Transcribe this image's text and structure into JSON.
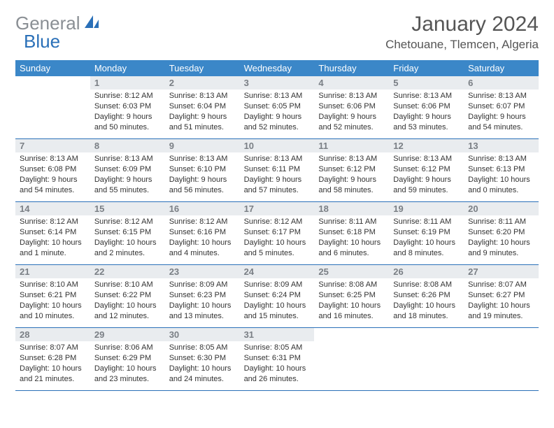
{
  "logo": {
    "gray": "General",
    "blue": "Blue"
  },
  "title": "January 2024",
  "location": "Chetouane, Tlemcen, Algeria",
  "colors": {
    "header_bg": "#3b87c8",
    "header_text": "#ffffff",
    "number_bg": "#e9ecef",
    "number_text": "#7a7f85",
    "border": "#2a70b8",
    "logo_gray": "#8a8f94",
    "logo_blue": "#2a70b8"
  },
  "day_names": [
    "Sunday",
    "Monday",
    "Tuesday",
    "Wednesday",
    "Thursday",
    "Friday",
    "Saturday"
  ],
  "weeks": [
    {
      "numbers": [
        "",
        "1",
        "2",
        "3",
        "4",
        "5",
        "6"
      ],
      "cells": [
        {
          "sunrise": "",
          "sunset": "",
          "daylight": ""
        },
        {
          "sunrise": "Sunrise: 8:12 AM",
          "sunset": "Sunset: 6:03 PM",
          "daylight": "Daylight: 9 hours and 50 minutes."
        },
        {
          "sunrise": "Sunrise: 8:13 AM",
          "sunset": "Sunset: 6:04 PM",
          "daylight": "Daylight: 9 hours and 51 minutes."
        },
        {
          "sunrise": "Sunrise: 8:13 AM",
          "sunset": "Sunset: 6:05 PM",
          "daylight": "Daylight: 9 hours and 52 minutes."
        },
        {
          "sunrise": "Sunrise: 8:13 AM",
          "sunset": "Sunset: 6:06 PM",
          "daylight": "Daylight: 9 hours and 52 minutes."
        },
        {
          "sunrise": "Sunrise: 8:13 AM",
          "sunset": "Sunset: 6:06 PM",
          "daylight": "Daylight: 9 hours and 53 minutes."
        },
        {
          "sunrise": "Sunrise: 8:13 AM",
          "sunset": "Sunset: 6:07 PM",
          "daylight": "Daylight: 9 hours and 54 minutes."
        }
      ]
    },
    {
      "numbers": [
        "7",
        "8",
        "9",
        "10",
        "11",
        "12",
        "13"
      ],
      "cells": [
        {
          "sunrise": "Sunrise: 8:13 AM",
          "sunset": "Sunset: 6:08 PM",
          "daylight": "Daylight: 9 hours and 54 minutes."
        },
        {
          "sunrise": "Sunrise: 8:13 AM",
          "sunset": "Sunset: 6:09 PM",
          "daylight": "Daylight: 9 hours and 55 minutes."
        },
        {
          "sunrise": "Sunrise: 8:13 AM",
          "sunset": "Sunset: 6:10 PM",
          "daylight": "Daylight: 9 hours and 56 minutes."
        },
        {
          "sunrise": "Sunrise: 8:13 AM",
          "sunset": "Sunset: 6:11 PM",
          "daylight": "Daylight: 9 hours and 57 minutes."
        },
        {
          "sunrise": "Sunrise: 8:13 AM",
          "sunset": "Sunset: 6:12 PM",
          "daylight": "Daylight: 9 hours and 58 minutes."
        },
        {
          "sunrise": "Sunrise: 8:13 AM",
          "sunset": "Sunset: 6:12 PM",
          "daylight": "Daylight: 9 hours and 59 minutes."
        },
        {
          "sunrise": "Sunrise: 8:13 AM",
          "sunset": "Sunset: 6:13 PM",
          "daylight": "Daylight: 10 hours and 0 minutes."
        }
      ]
    },
    {
      "numbers": [
        "14",
        "15",
        "16",
        "17",
        "18",
        "19",
        "20"
      ],
      "cells": [
        {
          "sunrise": "Sunrise: 8:12 AM",
          "sunset": "Sunset: 6:14 PM",
          "daylight": "Daylight: 10 hours and 1 minute."
        },
        {
          "sunrise": "Sunrise: 8:12 AM",
          "sunset": "Sunset: 6:15 PM",
          "daylight": "Daylight: 10 hours and 2 minutes."
        },
        {
          "sunrise": "Sunrise: 8:12 AM",
          "sunset": "Sunset: 6:16 PM",
          "daylight": "Daylight: 10 hours and 4 minutes."
        },
        {
          "sunrise": "Sunrise: 8:12 AM",
          "sunset": "Sunset: 6:17 PM",
          "daylight": "Daylight: 10 hours and 5 minutes."
        },
        {
          "sunrise": "Sunrise: 8:11 AM",
          "sunset": "Sunset: 6:18 PM",
          "daylight": "Daylight: 10 hours and 6 minutes."
        },
        {
          "sunrise": "Sunrise: 8:11 AM",
          "sunset": "Sunset: 6:19 PM",
          "daylight": "Daylight: 10 hours and 8 minutes."
        },
        {
          "sunrise": "Sunrise: 8:11 AM",
          "sunset": "Sunset: 6:20 PM",
          "daylight": "Daylight: 10 hours and 9 minutes."
        }
      ]
    },
    {
      "numbers": [
        "21",
        "22",
        "23",
        "24",
        "25",
        "26",
        "27"
      ],
      "cells": [
        {
          "sunrise": "Sunrise: 8:10 AM",
          "sunset": "Sunset: 6:21 PM",
          "daylight": "Daylight: 10 hours and 10 minutes."
        },
        {
          "sunrise": "Sunrise: 8:10 AM",
          "sunset": "Sunset: 6:22 PM",
          "daylight": "Daylight: 10 hours and 12 minutes."
        },
        {
          "sunrise": "Sunrise: 8:09 AM",
          "sunset": "Sunset: 6:23 PM",
          "daylight": "Daylight: 10 hours and 13 minutes."
        },
        {
          "sunrise": "Sunrise: 8:09 AM",
          "sunset": "Sunset: 6:24 PM",
          "daylight": "Daylight: 10 hours and 15 minutes."
        },
        {
          "sunrise": "Sunrise: 8:08 AM",
          "sunset": "Sunset: 6:25 PM",
          "daylight": "Daylight: 10 hours and 16 minutes."
        },
        {
          "sunrise": "Sunrise: 8:08 AM",
          "sunset": "Sunset: 6:26 PM",
          "daylight": "Daylight: 10 hours and 18 minutes."
        },
        {
          "sunrise": "Sunrise: 8:07 AM",
          "sunset": "Sunset: 6:27 PM",
          "daylight": "Daylight: 10 hours and 19 minutes."
        }
      ]
    },
    {
      "numbers": [
        "28",
        "29",
        "30",
        "31",
        "",
        "",
        ""
      ],
      "cells": [
        {
          "sunrise": "Sunrise: 8:07 AM",
          "sunset": "Sunset: 6:28 PM",
          "daylight": "Daylight: 10 hours and 21 minutes."
        },
        {
          "sunrise": "Sunrise: 8:06 AM",
          "sunset": "Sunset: 6:29 PM",
          "daylight": "Daylight: 10 hours and 23 minutes."
        },
        {
          "sunrise": "Sunrise: 8:05 AM",
          "sunset": "Sunset: 6:30 PM",
          "daylight": "Daylight: 10 hours and 24 minutes."
        },
        {
          "sunrise": "Sunrise: 8:05 AM",
          "sunset": "Sunset: 6:31 PM",
          "daylight": "Daylight: 10 hours and 26 minutes."
        },
        {
          "sunrise": "",
          "sunset": "",
          "daylight": ""
        },
        {
          "sunrise": "",
          "sunset": "",
          "daylight": ""
        },
        {
          "sunrise": "",
          "sunset": "",
          "daylight": ""
        }
      ]
    }
  ]
}
